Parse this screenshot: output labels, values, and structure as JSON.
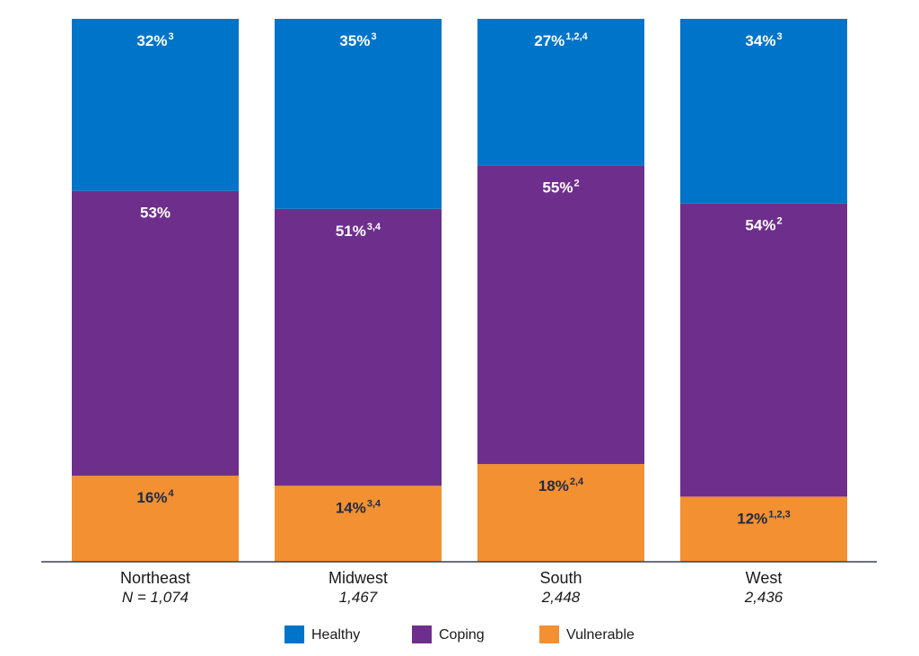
{
  "chart_data": {
    "type": "bar",
    "stacked": true,
    "percent_stacked": true,
    "categories": [
      "Northeast",
      "Midwest",
      "South",
      "West"
    ],
    "sample_sizes": [
      "N = 1,074",
      "1,467",
      "2,448",
      "2,436"
    ],
    "series": [
      {
        "name": "Vulnerable",
        "color": "#F39031",
        "label_color": "#1f2a44",
        "values": [
          16,
          14,
          18,
          12
        ],
        "labels": [
          "16%",
          "14%",
          "18%",
          "12%"
        ],
        "superscripts": [
          "4",
          "3,4",
          "2,4",
          "1,2,3"
        ]
      },
      {
        "name": "Coping",
        "color": "#6E2F8C",
        "label_color": "#ffffff",
        "values": [
          53,
          51,
          55,
          54
        ],
        "labels": [
          "53%",
          "51%",
          "55%",
          "54%"
        ],
        "superscripts": [
          "",
          "3,4",
          "2",
          "2"
        ]
      },
      {
        "name": "Healthy",
        "color": "#0074C8",
        "label_color": "#ffffff",
        "values": [
          32,
          35,
          27,
          34
        ],
        "labels": [
          "32%",
          "35%",
          "27%",
          "34%"
        ],
        "superscripts": [
          "3",
          "3",
          "1,2,4",
          "3"
        ]
      }
    ],
    "legend": {
      "placement": "bottom-center",
      "items": [
        {
          "name": "Healthy",
          "color": "#0074C8"
        },
        {
          "name": "Coping",
          "color": "#6E2F8C"
        },
        {
          "name": "Vulnerable",
          "color": "#F39031"
        }
      ]
    },
    "ylim": [
      0,
      100
    ],
    "grid": false,
    "title": "",
    "xlabel": "",
    "ylabel": ""
  }
}
